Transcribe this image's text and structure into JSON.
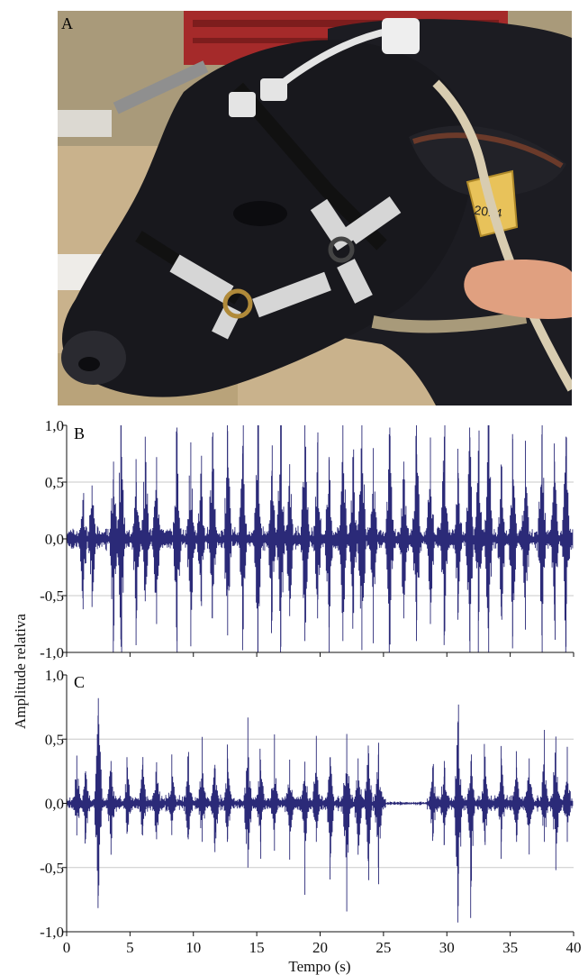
{
  "figure": {
    "panels": {
      "a": "A",
      "b": "B",
      "c": "C"
    },
    "photo": {
      "tag_number": "2014"
    },
    "ylabel": "Amplitude relativa",
    "xlabel": "Tempo (s)"
  },
  "colors": {
    "signal": "#2b2a78",
    "grid": "#c8c8c8",
    "axis": "#111111"
  },
  "chart_data": [
    {
      "type": "line",
      "panel": "B",
      "xlim": [
        0,
        40
      ],
      "ylim": [
        -1.0,
        1.0
      ],
      "yticks": [
        "1,0",
        "0,5",
        "0,0",
        "-0,5",
        "-1,0"
      ],
      "ytick_values": [
        1.0,
        0.5,
        0.0,
        -0.5,
        -1.0
      ],
      "grid": true,
      "baseline_noise": 0.08,
      "peaks": [
        [
          1.3,
          0.32,
          -0.62
        ],
        [
          2.0,
          0.45,
          -0.6
        ],
        [
          3.7,
          0.68,
          -0.9
        ],
        [
          4.3,
          1.0,
          -0.95
        ],
        [
          5.5,
          0.5,
          -0.7
        ],
        [
          6.2,
          0.9,
          -0.55
        ],
        [
          7.1,
          0.72,
          -0.75
        ],
        [
          8.7,
          0.98,
          -0.9
        ],
        [
          9.8,
          0.85,
          -0.8
        ],
        [
          10.6,
          0.55,
          -0.55
        ],
        [
          11.5,
          0.9,
          -0.7
        ],
        [
          12.7,
          0.95,
          -0.85
        ],
        [
          13.9,
          0.82,
          -0.7
        ],
        [
          15.1,
          0.96,
          -1.0
        ],
        [
          16.2,
          0.6,
          -0.72
        ],
        [
          16.9,
          1.0,
          -0.95
        ],
        [
          17.6,
          0.62,
          -0.68
        ],
        [
          18.8,
          1.0,
          -0.9
        ],
        [
          19.8,
          0.85,
          -0.7
        ],
        [
          20.7,
          0.72,
          -0.78
        ],
        [
          21.8,
          0.92,
          -0.9
        ],
        [
          22.6,
          0.65,
          -0.6
        ],
        [
          23.3,
          0.99,
          -0.98
        ],
        [
          24.2,
          0.8,
          -0.72
        ],
        [
          25.5,
          0.98,
          -0.85
        ],
        [
          26.6,
          0.68,
          -0.7
        ],
        [
          27.6,
          1.0,
          -0.9
        ],
        [
          28.7,
          0.72,
          -0.75
        ],
        [
          29.8,
          0.9,
          -0.85
        ],
        [
          30.9,
          0.58,
          -0.65
        ],
        [
          31.8,
          0.98,
          -0.9
        ],
        [
          32.5,
          0.7,
          -0.72
        ],
        [
          33.3,
          0.95,
          -1.0
        ],
        [
          34.3,
          0.62,
          -0.68
        ],
        [
          35.2,
          0.88,
          -0.86
        ],
        [
          36.2,
          0.7,
          -0.8
        ],
        [
          37.5,
          0.92,
          -0.85
        ],
        [
          38.5,
          0.68,
          -0.72
        ],
        [
          39.4,
          0.9,
          -0.95
        ]
      ]
    },
    {
      "type": "line",
      "panel": "C",
      "xlim": [
        0,
        40
      ],
      "ylim": [
        -1.0,
        1.0
      ],
      "xticks": [
        "0",
        "5",
        "10",
        "15",
        "20",
        "25",
        "30",
        "35",
        "40"
      ],
      "xtick_values": [
        0,
        5,
        10,
        15,
        20,
        25,
        30,
        35,
        40
      ],
      "yticks": [
        "1,0",
        "0,5",
        "0,0",
        "-0,5",
        "-1,0"
      ],
      "ytick_values": [
        1.0,
        0.5,
        0.0,
        -0.5,
        -1.0
      ],
      "grid": true,
      "baseline_noise": 0.05,
      "quiet_interval": [
        25.2,
        28.4
      ],
      "peaks": [
        [
          0.8,
          0.3,
          -0.25
        ],
        [
          1.5,
          0.25,
          -0.28
        ],
        [
          2.5,
          0.82,
          -0.72
        ],
        [
          3.5,
          0.33,
          -0.4
        ],
        [
          4.8,
          0.28,
          -0.22
        ],
        [
          6.0,
          0.3,
          -0.25
        ],
        [
          7.1,
          0.3,
          -0.28
        ],
        [
          8.3,
          0.27,
          -0.22
        ],
        [
          9.6,
          0.33,
          -0.28
        ],
        [
          10.7,
          0.36,
          -0.3
        ],
        [
          11.7,
          0.3,
          -0.38
        ],
        [
          12.7,
          0.35,
          -0.28
        ],
        [
          14.3,
          0.45,
          -0.5
        ],
        [
          15.3,
          0.34,
          -0.3
        ],
        [
          16.4,
          0.36,
          -0.32
        ],
        [
          17.6,
          0.34,
          -0.3
        ],
        [
          18.8,
          0.28,
          -0.5
        ],
        [
          19.7,
          0.35,
          -0.3
        ],
        [
          20.8,
          0.36,
          -0.42
        ],
        [
          22.1,
          0.54,
          -0.65
        ],
        [
          23.0,
          0.35,
          -0.4
        ],
        [
          23.8,
          0.45,
          -0.45
        ],
        [
          24.6,
          0.38,
          -0.5
        ],
        [
          28.9,
          0.29,
          -0.26
        ],
        [
          29.8,
          0.33,
          -0.32
        ],
        [
          30.9,
          0.64,
          -0.8
        ],
        [
          31.9,
          0.33,
          -0.65
        ],
        [
          33.0,
          0.35,
          -0.3
        ],
        [
          34.3,
          0.35,
          -0.3
        ],
        [
          35.5,
          0.28,
          -0.3
        ],
        [
          36.5,
          0.35,
          -0.32
        ],
        [
          37.7,
          0.38,
          -0.3
        ],
        [
          38.6,
          0.52,
          -0.52
        ],
        [
          39.5,
          0.3,
          -0.3
        ]
      ]
    }
  ]
}
